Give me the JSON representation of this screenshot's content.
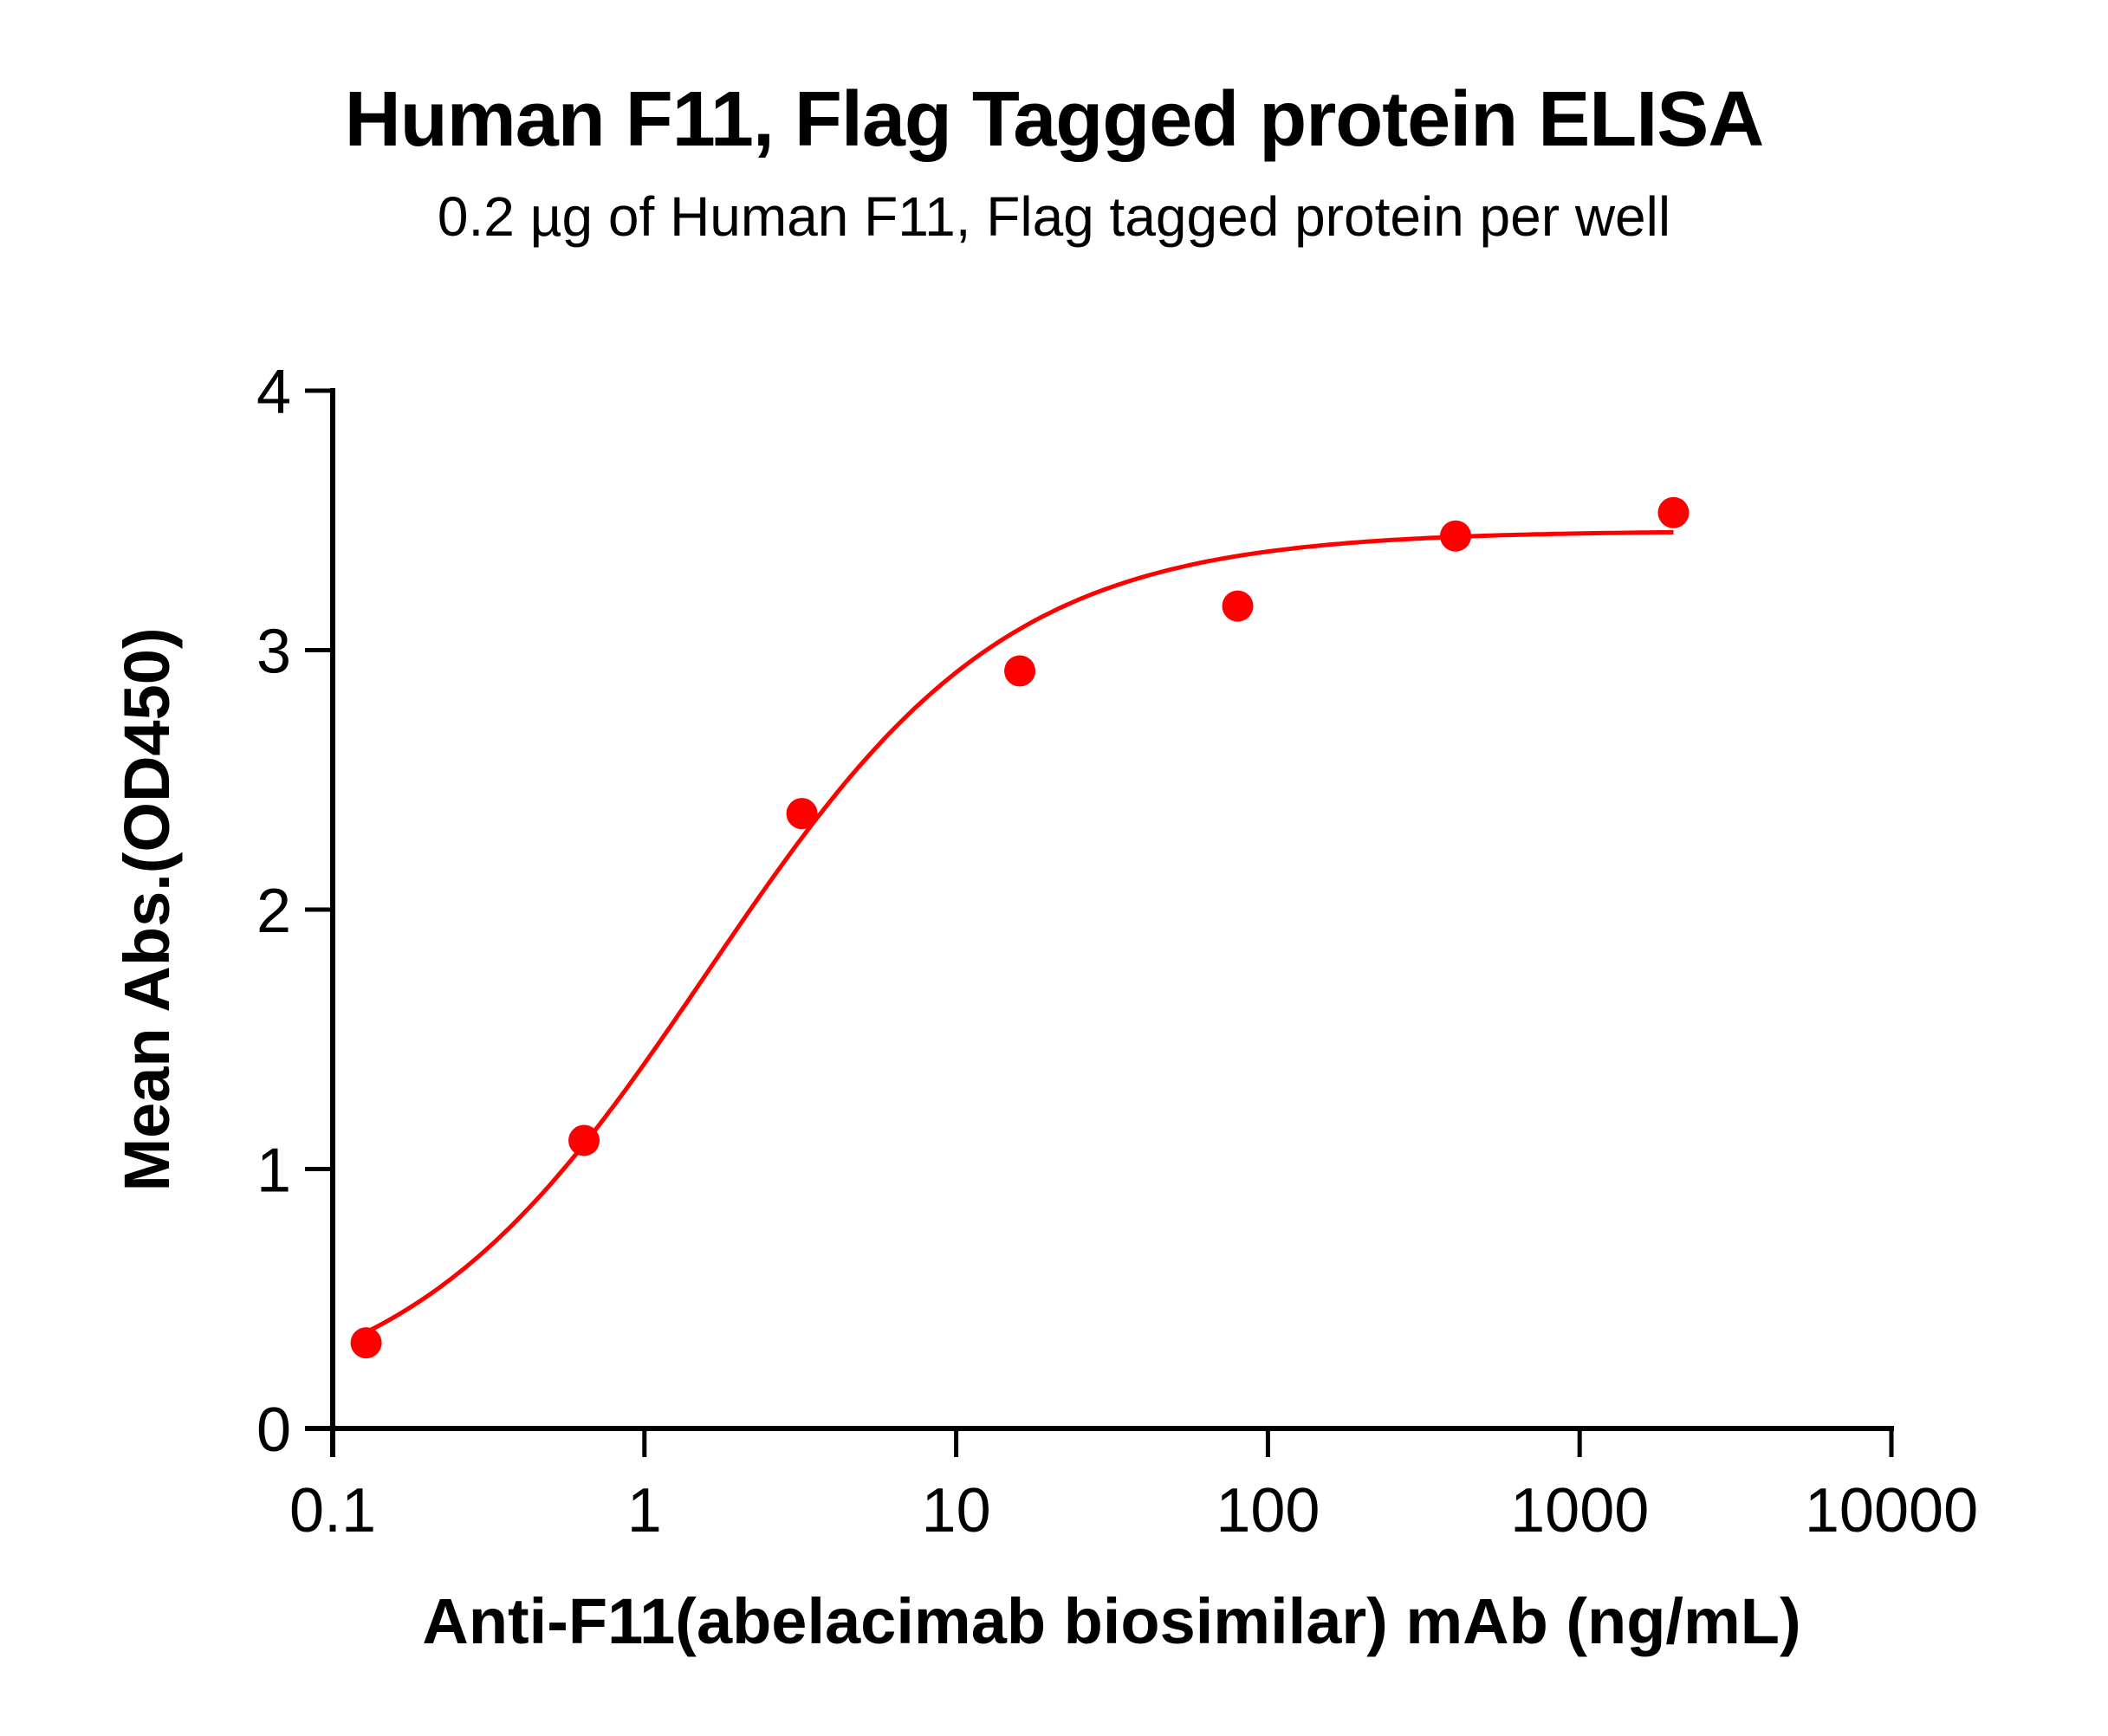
{
  "chart_data": {
    "type": "scatter",
    "title": "Human F11, Flag Tagged protein ELISA",
    "subtitle": "0.2 µg of Human F11, Flag tagged protein per well",
    "xlabel": "Anti-F11(abelacimab biosimilar) mAb (ng/mL)",
    "ylabel": "Mean Abs.(OD450)",
    "xscale": "log",
    "xlim": [
      0.1,
      10000
    ],
    "ylim": [
      0,
      4
    ],
    "x_ticks": [
      0.1,
      1,
      10,
      100,
      1000,
      10000
    ],
    "x_tick_labels": [
      "0.1",
      "1",
      "10",
      "100",
      "1000",
      "10000"
    ],
    "y_ticks": [
      0,
      1,
      2,
      3,
      4
    ],
    "y_tick_labels": [
      "0",
      "1",
      "2",
      "3",
      "4"
    ],
    "grid": false,
    "legend": null,
    "series": [
      {
        "name": "Human F11, Flag tagged protein",
        "color": "#ff0000",
        "x": [
          0.128,
          0.64,
          3.2,
          16,
          80,
          400,
          2000
        ],
        "y": [
          0.33,
          1.11,
          2.37,
          2.92,
          3.17,
          3.44,
          3.53
        ],
        "fit": {
          "model": "4PL",
          "bottom": 0.05,
          "top": 3.46,
          "log_ec50": 0.2,
          "hill": 0.9,
          "x_range": [
            0.128,
            2000
          ]
        }
      }
    ]
  },
  "colors": {
    "series": "#ff0000",
    "axis": "#000000",
    "background": "#ffffff"
  }
}
